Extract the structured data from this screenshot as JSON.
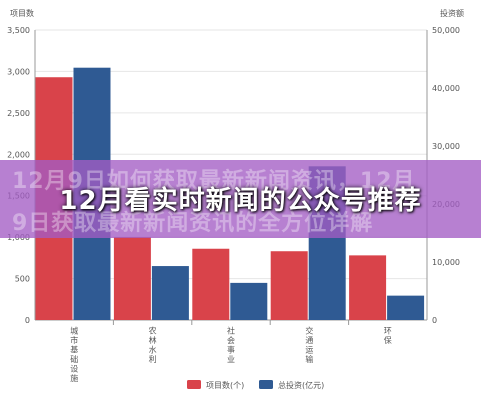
{
  "chart_data": {
    "type": "bar",
    "categories": [
      "城市基础设施",
      "农林水利",
      "社会事业",
      "交通运输",
      "环保"
    ],
    "series": [
      {
        "name": "项目数(个)",
        "axis": "left",
        "color": "#d9434a",
        "values": [
          2930,
          1000,
          860,
          830,
          780
        ]
      },
      {
        "name": "总投资(亿元)",
        "axis": "right",
        "color": "#2f5a93",
        "values": [
          43500,
          9300,
          6400,
          26500,
          4200
        ]
      }
    ],
    "ylabel": "项目数",
    "y2label": "投资额",
    "ylim": [
      0,
      3500
    ],
    "y2lim": [
      0,
      50000
    ],
    "yticks": [
      "0",
      "500",
      "1,000",
      "1,500",
      "2,000",
      "2,500",
      "3,000",
      "3,500"
    ],
    "y2ticks": [
      "0",
      "10,000",
      "20,000",
      "30,000",
      "40,000",
      "50,000"
    ],
    "grid": true,
    "legend": "bottom"
  },
  "overlay": {
    "title": "12月看实时新闻的公众号推荐",
    "ghost_line_1": "12月9日如何获取最新新闻资讯，12月",
    "ghost_line_2": "9日获取最新新闻资讯的全方位详解"
  }
}
